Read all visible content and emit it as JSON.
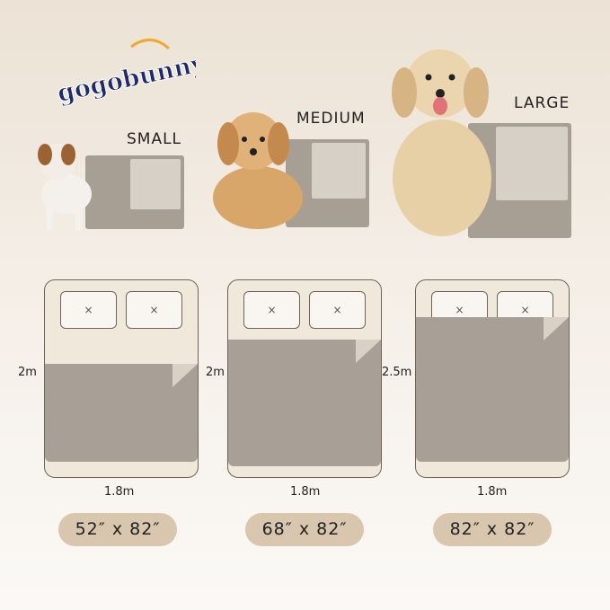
{
  "brand": {
    "name": "gogobunny",
    "text_color": "#1d2a6b",
    "accent_color": "#f0a92e"
  },
  "sizes": [
    {
      "label": "SMALL",
      "height": "2m",
      "width": "1.8m",
      "dimensions": "52″ x 82″"
    },
    {
      "label": "MEDIUM",
      "height": "2m",
      "width": "1.8m",
      "dimensions": "68″ x 82″"
    },
    {
      "label": "LARGE",
      "height": "2.5m",
      "width": "1.8m",
      "dimensions": "82″ x 82″"
    }
  ],
  "pillow_mark": "×",
  "colors": {
    "pad": "#a8a096",
    "bed": "#f0e8da",
    "pill": "#d8c7ae"
  }
}
